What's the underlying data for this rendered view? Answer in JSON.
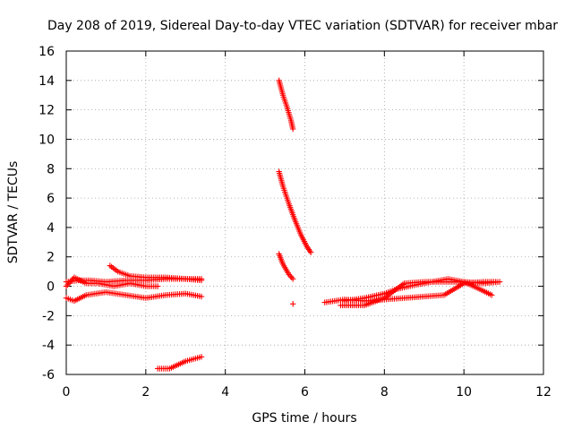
{
  "chart_data": {
    "type": "scatter",
    "title": "Day 208 of 2019, Sidereal Day-to-day VTEC variation (SDTVAR) for receiver mbar",
    "xlabel": "GPS time / hours",
    "ylabel": "SDTVAR / TECUs",
    "xlim": [
      0,
      12
    ],
    "ylim": [
      -6,
      16
    ],
    "x_ticks": [
      "0",
      "2",
      "4",
      "6",
      "8",
      "10",
      "12"
    ],
    "y_ticks": [
      "-6",
      "-4",
      "-2",
      "0",
      "2",
      "4",
      "6",
      "8",
      "10",
      "12",
      "14",
      "16"
    ],
    "grid": true,
    "marker": "plus",
    "color": "#ff0000",
    "segments": [
      {
        "x": [
          0.0,
          0.2,
          0.5,
          1.0,
          1.5,
          2.0,
          2.5,
          3.0,
          3.4
        ],
        "y": [
          -0.8,
          -1.0,
          -0.6,
          -0.4,
          -0.6,
          -0.8,
          -0.6,
          -0.5,
          -0.7
        ]
      },
      {
        "x": [
          0.0,
          0.3,
          0.6,
          1.0,
          1.5,
          2.0,
          2.5,
          3.0,
          3.4
        ],
        "y": [
          0.3,
          0.4,
          0.4,
          0.3,
          0.4,
          0.4,
          0.5,
          0.5,
          0.4
        ]
      },
      {
        "x": [
          0.0,
          0.2,
          0.5,
          0.8,
          1.2,
          1.6,
          2.0,
          2.3
        ],
        "y": [
          0.0,
          0.6,
          0.2,
          0.2,
          0.0,
          0.2,
          0.0,
          0.0
        ]
      },
      {
        "x": [
          1.1,
          1.3,
          1.6,
          2.0,
          2.5,
          3.0,
          3.4
        ],
        "y": [
          1.4,
          1.0,
          0.7,
          0.6,
          0.6,
          0.5,
          0.5
        ]
      },
      {
        "x": [
          2.3,
          2.6,
          3.0,
          3.4
        ],
        "y": [
          -5.6,
          -5.6,
          -5.1,
          -4.8
        ]
      },
      {
        "x": [
          5.35,
          5.45,
          5.55,
          5.65,
          5.7
        ],
        "y": [
          14.0,
          13.0,
          12.2,
          11.3,
          10.7
        ]
      },
      {
        "x": [
          5.35,
          5.45,
          5.6,
          5.75,
          5.9,
          6.05,
          6.15
        ],
        "y": [
          7.8,
          6.8,
          5.6,
          4.5,
          3.5,
          2.7,
          2.3
        ]
      },
      {
        "x": [
          5.35,
          5.45,
          5.6,
          5.7
        ],
        "y": [
          2.2,
          1.5,
          0.8,
          0.5
        ]
      },
      {
        "x": [
          5.7
        ],
        "y": [
          -1.2
        ]
      },
      {
        "x": [
          6.5,
          7.0,
          7.5,
          8.0,
          8.5,
          9.0,
          9.5,
          10.0,
          10.5,
          10.8
        ],
        "y": [
          -1.1,
          -0.9,
          -1.0,
          -0.9,
          -0.8,
          -0.7,
          -0.6,
          0.2,
          0.3,
          0.3
        ]
      },
      {
        "x": [
          6.9,
          7.5,
          8.0,
          8.5,
          9.0,
          9.5,
          10.0,
          10.5,
          10.9
        ],
        "y": [
          -1.3,
          -1.3,
          -0.8,
          0.2,
          0.3,
          0.3,
          0.3,
          0.2,
          0.3
        ]
      },
      {
        "x": [
          7.0,
          7.5,
          8.0,
          8.3,
          8.8,
          9.2,
          9.6,
          10.0,
          10.4,
          10.7
        ],
        "y": [
          -1.0,
          -0.8,
          -0.5,
          -0.2,
          0.1,
          0.3,
          0.5,
          0.3,
          -0.2,
          -0.6
        ]
      }
    ]
  }
}
